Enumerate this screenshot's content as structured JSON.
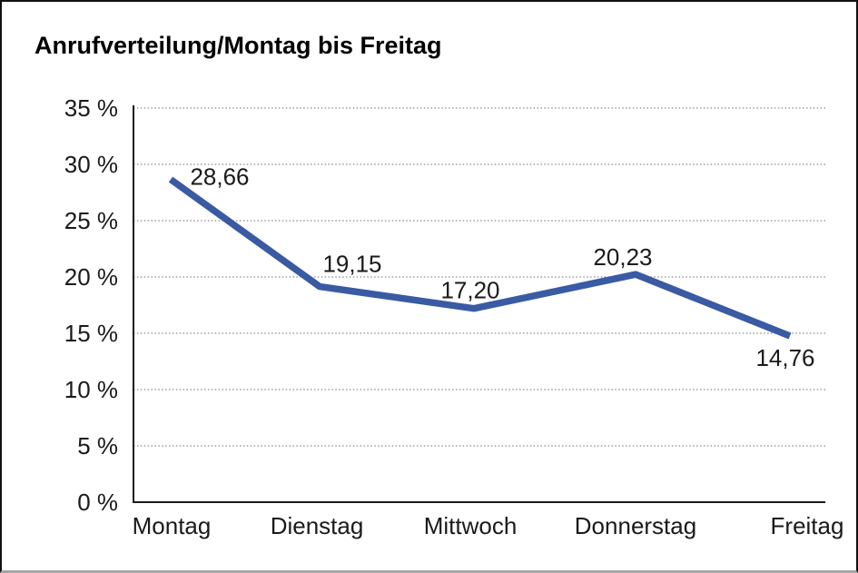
{
  "title": "Anrufverteilung/Montag bis Freitag",
  "colors": {
    "line": "#3a5aa3",
    "grid": "#8a8a8a",
    "axis": "#1a1a1a",
    "text": "#1a1a1a",
    "background": "#ffffff"
  },
  "chart_data": {
    "type": "line",
    "title": "Anrufverteilung/Montag bis Freitag",
    "categories": [
      "Montag",
      "Dienstag",
      "Mittwoch",
      "Donnerstag",
      "Freitag"
    ],
    "values": [
      28.66,
      19.15,
      17.2,
      20.23,
      14.76
    ],
    "data_labels": [
      "28,66",
      "19,15",
      "17,20",
      "20,23",
      "14,76"
    ],
    "xlabel": "",
    "ylabel": "",
    "y_ticks": [
      0,
      5,
      10,
      15,
      20,
      25,
      30,
      35
    ],
    "y_tick_labels": [
      "0 %",
      "5 %",
      "10 %",
      "15 %",
      "20 %",
      "25 %",
      "30 %",
      "35 %"
    ],
    "ylim": [
      0,
      35
    ],
    "grid": "horizontal-dotted",
    "legend": "none"
  }
}
